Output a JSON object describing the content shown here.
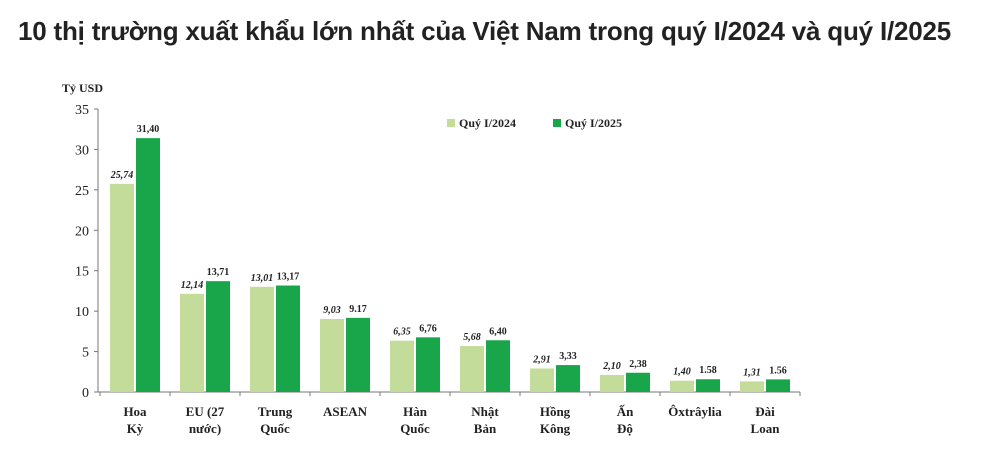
{
  "page": {
    "title": "10 thị trường xuất khẩu lớn nhất của Việt Nam trong quý I/2024 và quý I/2025"
  },
  "chart_data": {
    "type": "bar",
    "ylabel": "Tỷ USD",
    "ylim": [
      0,
      35
    ],
    "yticks": [
      "0",
      "5",
      "10",
      "15",
      "20",
      "25",
      "30",
      "35"
    ],
    "categories": [
      [
        "Hoa",
        "Kỳ"
      ],
      [
        "EU (27",
        "nước)"
      ],
      [
        "Trung",
        "Quốc"
      ],
      [
        "ASEAN"
      ],
      [
        "Hàn",
        "Quốc"
      ],
      [
        "Nhật",
        "Bản"
      ],
      [
        "Hồng",
        "Kông"
      ],
      [
        "Ấn",
        "Độ"
      ],
      [
        "Ôxtrâylia"
      ],
      [
        "Đài",
        "Loan"
      ]
    ],
    "series": [
      {
        "name": "Quý I/2024",
        "color": "#c3dc9a",
        "values": [
          25.74,
          12.14,
          13.01,
          9.03,
          6.35,
          5.68,
          2.91,
          2.1,
          1.4,
          1.31
        ],
        "labels": [
          "25,74",
          "12,14",
          "13,01",
          "9,03",
          "6,35",
          "5,68",
          "2,91",
          "2,10",
          "1,40",
          "1,31"
        ]
      },
      {
        "name": "Quý I/2025",
        "color": "#19a64a",
        "values": [
          31.4,
          13.71,
          13.17,
          9.17,
          6.76,
          6.4,
          3.33,
          2.38,
          1.58,
          1.56
        ],
        "labels": [
          "31,40",
          "13,71",
          "13,17",
          "9.17",
          "6,76",
          "6,40",
          "3,33",
          "2,38",
          "1.58",
          "1.56"
        ]
      }
    ],
    "legend_position": "top-right",
    "grid": false
  }
}
